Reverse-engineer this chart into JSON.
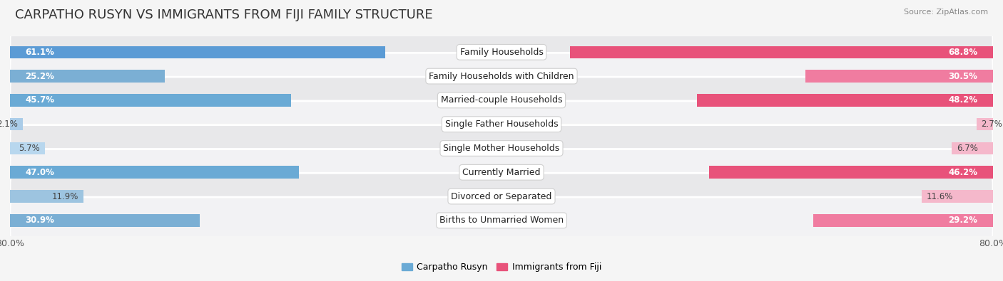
{
  "title": "CARPATHO RUSYN VS IMMIGRANTS FROM FIJI FAMILY STRUCTURE",
  "source": "Source: ZipAtlas.com",
  "categories": [
    "Family Households",
    "Family Households with Children",
    "Married-couple Households",
    "Single Father Households",
    "Single Mother Households",
    "Currently Married",
    "Divorced or Separated",
    "Births to Unmarried Women"
  ],
  "left_values": [
    61.1,
    25.2,
    45.7,
    2.1,
    5.7,
    47.0,
    11.9,
    30.9
  ],
  "right_values": [
    68.8,
    30.5,
    48.2,
    2.7,
    6.7,
    46.2,
    11.6,
    29.2
  ],
  "left_colors": [
    "#5b9bd5",
    "#7bafd4",
    "#6aaad5",
    "#aacce8",
    "#b8d7ee",
    "#6aaad5",
    "#9dc4e0",
    "#7bafd4"
  ],
  "right_colors": [
    "#e8527a",
    "#f07ca0",
    "#e8527a",
    "#f5b8cb",
    "#f5b8cb",
    "#e8527a",
    "#f5b8cb",
    "#f07ca0"
  ],
  "left_label": "Carpatho Rusyn",
  "right_label": "Immigrants from Fiji",
  "max_val": 80.0,
  "background_color": "#f5f5f5",
  "title_fontsize": 13,
  "label_fontsize": 9,
  "value_fontsize": 8.5,
  "axis_label_fontsize": 9,
  "legend_fontsize": 9,
  "row_colors": [
    "#e8e8e8",
    "#f0f0f0",
    "#e8e8e8",
    "#f0f0f0",
    "#e8e8e8",
    "#f0f0f0",
    "#e8e8e8",
    "#f0f0f0"
  ]
}
